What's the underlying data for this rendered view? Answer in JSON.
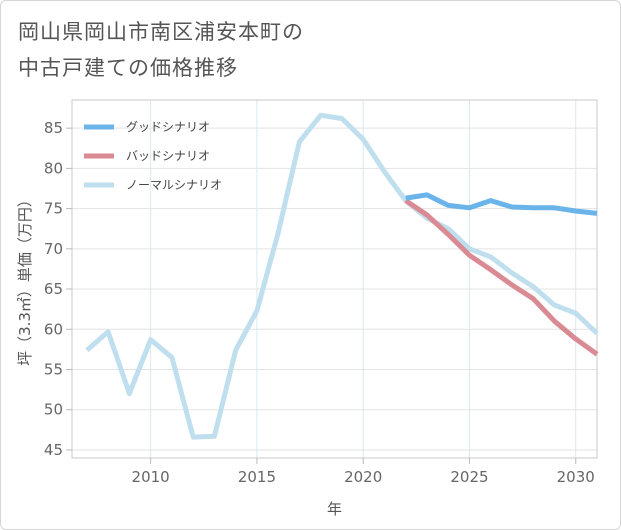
{
  "title_lines": [
    "岡山県岡山市南区浦安本町の",
    "中古戸建ての価格推移"
  ],
  "chart_data": {
    "type": "line",
    "title": "岡山県岡山市南区浦安本町の中古戸建ての価格推移",
    "xlabel": "年",
    "ylabel": "坪（3.3㎡）単価（万円）",
    "xlim": [
      2006.3,
      2031
    ],
    "ylim": [
      44,
      88.5
    ],
    "xticks": [
      2010,
      2015,
      2020,
      2025,
      2030
    ],
    "yticks": [
      45,
      50,
      55,
      60,
      65,
      70,
      75,
      80,
      85
    ],
    "grid": true,
    "legend_position": "top-left",
    "series": [
      {
        "name": "グッドシナリオ",
        "color": "#6ab4ea",
        "x": [
          2022,
          2023,
          2024,
          2025,
          2026,
          2027,
          2028,
          2029,
          2030,
          2031
        ],
        "y": [
          76.3,
          76.7,
          75.4,
          75.1,
          76.0,
          75.2,
          75.1,
          75.1,
          74.7,
          74.4
        ]
      },
      {
        "name": "バッドシナリオ",
        "color": "#d98a92",
        "x": [
          2022,
          2023,
          2024,
          2025,
          2026,
          2027,
          2028,
          2029,
          2030,
          2031
        ],
        "y": [
          76.0,
          74.2,
          71.8,
          69.2,
          67.4,
          65.5,
          63.8,
          61.0,
          58.8,
          56.9
        ]
      },
      {
        "name": "ノーマルシナリオ",
        "color": "#bfdfee",
        "x": [
          2007,
          2008,
          2009,
          2010,
          2011,
          2012,
          2013,
          2014,
          2015,
          2016,
          2017,
          2018,
          2019,
          2020,
          2021,
          2022,
          2023,
          2024,
          2025,
          2026,
          2027,
          2028,
          2029,
          2030,
          2031
        ],
        "y": [
          57.4,
          59.7,
          52.0,
          58.7,
          56.5,
          46.6,
          46.7,
          57.4,
          62.3,
          72.0,
          83.3,
          86.6,
          86.2,
          83.6,
          79.6,
          76.0,
          73.8,
          72.5,
          70.0,
          69.0,
          67.0,
          65.3,
          63.0,
          62.0,
          59.5
        ]
      }
    ]
  }
}
